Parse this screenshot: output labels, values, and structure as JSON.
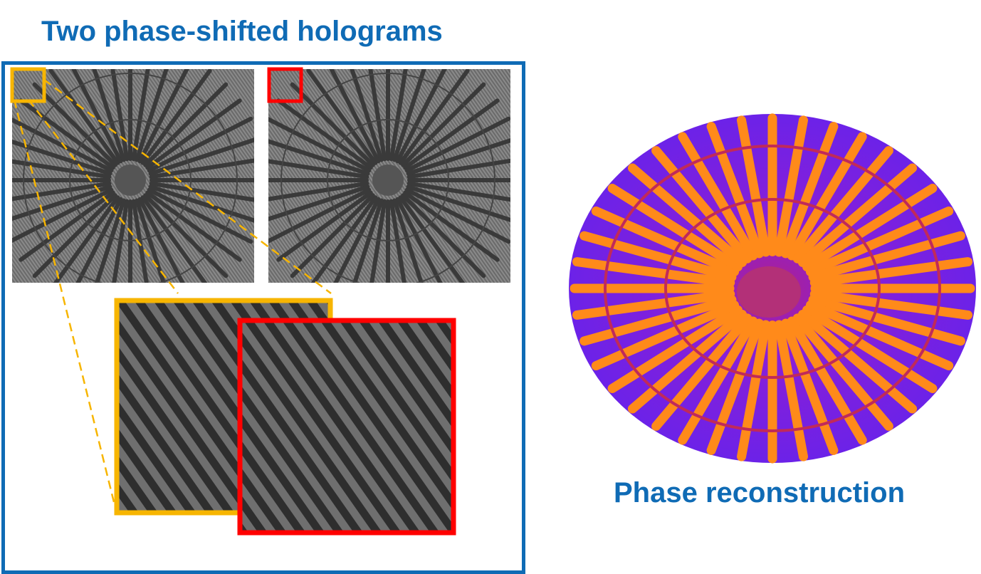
{
  "figure": {
    "left_title": "Two phase-shifted holograms",
    "right_title": "Phase reconstruction",
    "colors": {
      "title": "#0f6bb5",
      "frame": "#0f6bb5",
      "zoom_box_1": "#f7b500",
      "zoom_box_2": "#ff0000",
      "phase_high": "#ff8a1a",
      "phase_low": "#7b1fe0"
    },
    "holograms": [
      {
        "label": "hologram-1",
        "highlight": "orange"
      },
      {
        "label": "hologram-2",
        "highlight": "red"
      }
    ],
    "spokes": 40
  }
}
